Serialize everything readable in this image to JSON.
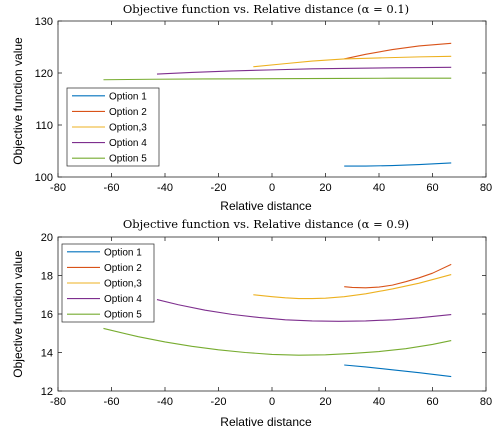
{
  "chart_data": [
    {
      "type": "line",
      "title": "Objective function vs. Relative distance (α = 0.1)",
      "xlabel": "Relative distance",
      "ylabel": "Objective function value",
      "xlim": [
        -80,
        80
      ],
      "ylim": [
        100,
        130
      ],
      "xticks": [
        -80,
        -60,
        -40,
        -20,
        0,
        20,
        40,
        60,
        80
      ],
      "yticks": [
        100,
        110,
        120,
        130
      ],
      "grid": false,
      "legend_position": "bottom-left",
      "series": [
        {
          "name": "Option 1",
          "color": "#0072BD",
          "x": [
            27,
            35,
            45,
            55,
            67
          ],
          "y": [
            102.1,
            102.1,
            102.2,
            102.4,
            102.7
          ]
        },
        {
          "name": "Option 2",
          "color": "#D95319",
          "x": [
            27,
            35,
            45,
            55,
            67
          ],
          "y": [
            122.7,
            123.6,
            124.5,
            125.2,
            125.7
          ]
        },
        {
          "name": "Option,3",
          "color": "#EDB120",
          "x": [
            -7,
            5,
            15,
            27,
            40,
            55,
            67
          ],
          "y": [
            121.2,
            121.8,
            122.3,
            122.7,
            122.9,
            123.1,
            123.2
          ]
        },
        {
          "name": "Option 4",
          "color": "#7E2F8E",
          "x": [
            -43,
            -30,
            -15,
            0,
            15,
            30,
            45,
            67
          ],
          "y": [
            119.8,
            120.1,
            120.4,
            120.6,
            120.8,
            120.9,
            121.0,
            121.1
          ]
        },
        {
          "name": "Option 5",
          "color": "#77AC30",
          "x": [
            -63,
            -45,
            -25,
            0,
            25,
            45,
            67
          ],
          "y": [
            118.7,
            118.8,
            118.85,
            118.9,
            118.95,
            119.0,
            119.0
          ]
        }
      ]
    },
    {
      "type": "line",
      "title": "Objective function vs. Relative distance (α = 0.9)",
      "xlabel": "Relative distance",
      "ylabel": "Objective function value",
      "xlim": [
        -80,
        80
      ],
      "ylim": [
        12,
        20
      ],
      "xticks": [
        -80,
        -60,
        -40,
        -20,
        0,
        20,
        40,
        60,
        80
      ],
      "yticks": [
        12,
        14,
        16,
        18,
        20
      ],
      "grid": false,
      "legend_position": "top-left",
      "series": [
        {
          "name": "Option 1",
          "color": "#0072BD",
          "x": [
            27,
            35,
            45,
            55,
            67
          ],
          "y": [
            13.35,
            13.25,
            13.1,
            12.95,
            12.75
          ]
        },
        {
          "name": "Option 2",
          "color": "#D95319",
          "x": [
            27,
            30,
            35,
            40,
            45,
            50,
            55,
            60,
            67
          ],
          "y": [
            17.42,
            17.38,
            17.36,
            17.4,
            17.5,
            17.68,
            17.88,
            18.12,
            18.58
          ]
        },
        {
          "name": "Option,3",
          "color": "#EDB120",
          "x": [
            -7,
            0,
            5,
            10,
            15,
            20,
            27,
            35,
            45,
            55,
            67
          ],
          "y": [
            17.0,
            16.9,
            16.84,
            16.8,
            16.8,
            16.82,
            16.9,
            17.05,
            17.3,
            17.6,
            18.05
          ]
        },
        {
          "name": "Option 4",
          "color": "#7E2F8E",
          "x": [
            -43,
            -35,
            -25,
            -15,
            -5,
            5,
            15,
            25,
            35,
            45,
            55,
            67
          ],
          "y": [
            16.75,
            16.48,
            16.2,
            15.98,
            15.82,
            15.7,
            15.64,
            15.62,
            15.64,
            15.7,
            15.8,
            15.97
          ]
        },
        {
          "name": "Option 5",
          "color": "#77AC30",
          "x": [
            -63,
            -50,
            -40,
            -30,
            -20,
            -10,
            0,
            10,
            20,
            30,
            40,
            50,
            60,
            67
          ],
          "y": [
            15.25,
            14.82,
            14.55,
            14.32,
            14.14,
            14.0,
            13.9,
            13.86,
            13.88,
            13.95,
            14.05,
            14.2,
            14.42,
            14.62
          ]
        }
      ]
    }
  ]
}
